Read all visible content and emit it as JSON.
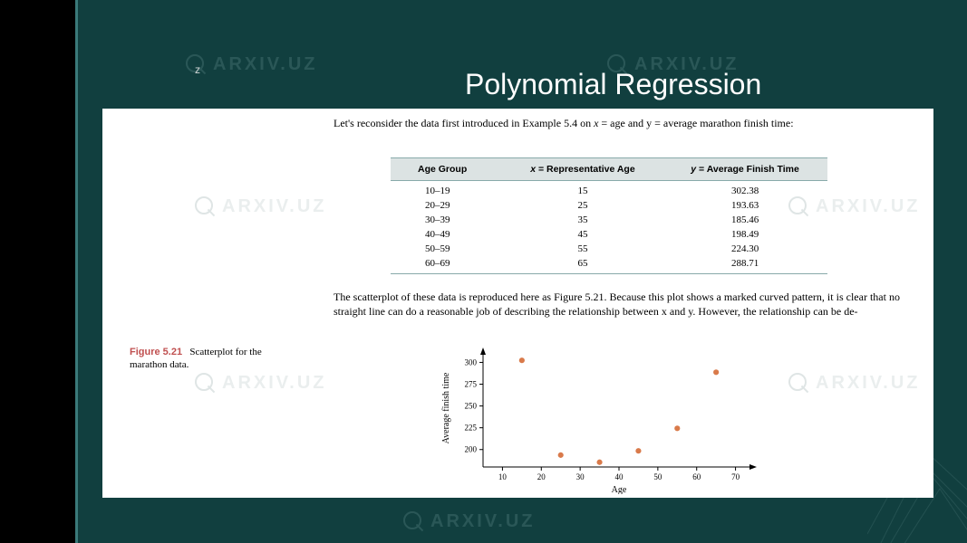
{
  "slide": {
    "letter": "z",
    "title": "Polynomial Regression",
    "watermark_text": "ARXIV.UZ"
  },
  "content": {
    "intro_before_xvar": "Let's reconsider the data first introduced in Example 5.4 on ",
    "intro_xvar": "x",
    "intro_mid": " = age and y = average marathon finish time:",
    "table": {
      "headers": [
        "Age Group",
        "x = Representative Age",
        "y = Average Finish Time"
      ],
      "header_x_var": "x",
      "header_x_rest": " = Representative Age",
      "header_y_var": "y",
      "header_y_rest": " = Average Finish Time",
      "rows": [
        [
          "10–19",
          "15",
          "302.38"
        ],
        [
          "20–29",
          "25",
          "193.63"
        ],
        [
          "30–39",
          "35",
          "185.46"
        ],
        [
          "40–49",
          "45",
          "198.49"
        ],
        [
          "50–59",
          "55",
          "224.30"
        ],
        [
          "60–69",
          "65",
          "288.71"
        ]
      ],
      "header_bg": "#dce3e3",
      "border_color": "#88aaaa"
    },
    "mid_text": "The scatterplot of these data is reproduced here as Figure 5.21. Because this plot shows a marked curved pattern, it is clear that no straight line can do a reasonable job of describing the relationship between x and y. However, the relationship can be de-",
    "figure": {
      "number": "Figure 5.21",
      "caption": "Scatterplot for the marathon data."
    },
    "chart": {
      "type": "scatter",
      "xlabel": "Age",
      "ylabel": "Average finish time",
      "xlim": [
        5,
        75
      ],
      "ylim": [
        180,
        315
      ],
      "xticks": [
        10,
        20,
        30,
        40,
        50,
        60,
        70
      ],
      "yticks": [
        200,
        225,
        250,
        275,
        300
      ],
      "points": [
        {
          "x": 15,
          "y": 302.38
        },
        {
          "x": 25,
          "y": 193.63
        },
        {
          "x": 35,
          "y": 185.46
        },
        {
          "x": 45,
          "y": 198.49
        },
        {
          "x": 55,
          "y": 224.3
        },
        {
          "x": 65,
          "y": 288.71
        }
      ],
      "marker_color": "#d97a4a",
      "marker_size": 4,
      "axis_color": "#000000",
      "text_color": "#000000",
      "background_color": "#ffffff",
      "label_fontsize": 10,
      "tick_fontsize": 9
    }
  },
  "colors": {
    "slide_bg": "#113f3f",
    "content_bg": "#ffffff",
    "accent": "#3a7a7a",
    "title_color": "#ffffff",
    "fig_num_color": "#c05050"
  }
}
